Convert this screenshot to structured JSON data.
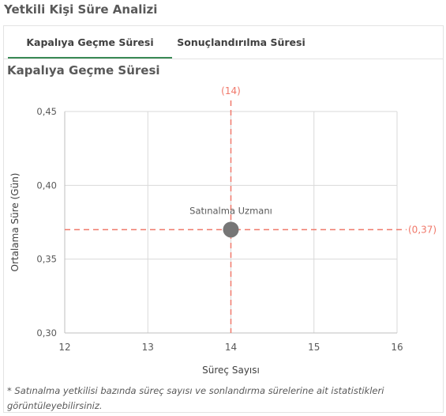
{
  "page": {
    "title": "Yetkili Kişi Süre Analizi"
  },
  "tabs": [
    {
      "label": "Kapalıya Geçme Süresi",
      "active": true
    },
    {
      "label": "Sonuçlandırılma Süresi",
      "active": false
    }
  ],
  "chart_title": "Kapalıya Geçme Süresi",
  "footnote": "* Satınalma yetkilisi bazında süreç sayısı ve sonlandırma sürelerine ait istatistikleri görüntüleyebilirsiniz.",
  "colors": {
    "reference_line": "#f0786a",
    "point": "#767676",
    "grid": "#d9d9d9"
  },
  "chart_data": {
    "type": "scatter",
    "xlabel": "Süreç Sayısı",
    "ylabel": "Ortalama Süre (Gün)",
    "xlim": [
      12,
      16
    ],
    "ylim": [
      0.3,
      0.45
    ],
    "x_ticks": [
      12,
      13,
      14,
      15,
      16
    ],
    "x_tick_labels": [
      "12",
      "13",
      "14",
      "15",
      "16"
    ],
    "y_ticks": [
      0.3,
      0.35,
      0.4,
      0.45
    ],
    "y_tick_labels": [
      "0,30",
      "0,35",
      "0,40",
      "0,45"
    ],
    "grid": true,
    "points": [
      {
        "label": "Satınalma Uzmanı",
        "x": 14,
        "y": 0.37
      }
    ],
    "reference_lines": [
      {
        "axis": "x",
        "value": 14,
        "label": "(14)"
      },
      {
        "axis": "y",
        "value": 0.37,
        "label": "(0,37)"
      }
    ]
  }
}
